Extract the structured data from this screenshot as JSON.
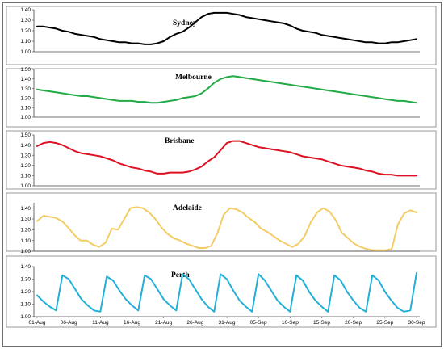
{
  "chart_data": [
    {
      "type": "line",
      "title": "Sydney",
      "ylim": [
        1.0,
        1.4
      ],
      "yticks": [
        "1.00",
        "1.10",
        "1.20",
        "1.30",
        "1.40"
      ],
      "color": "#000000",
      "series": [
        {
          "values": [
            1.24,
            1.24,
            1.23,
            1.22,
            1.2,
            1.19,
            1.17,
            1.16,
            1.15,
            1.14,
            1.12,
            1.11,
            1.1,
            1.09,
            1.09,
            1.08,
            1.08,
            1.07,
            1.07,
            1.08,
            1.1,
            1.14,
            1.17,
            1.19,
            1.23,
            1.28,
            1.33,
            1.36,
            1.37,
            1.37,
            1.37,
            1.36,
            1.35,
            1.33,
            1.32,
            1.31,
            1.3,
            1.29,
            1.28,
            1.27,
            1.25,
            1.22,
            1.2,
            1.19,
            1.18,
            1.16,
            1.15,
            1.14,
            1.13,
            1.12,
            1.11,
            1.1,
            1.09,
            1.09,
            1.08,
            1.08,
            1.09,
            1.09,
            1.1,
            1.11,
            1.12
          ]
        }
      ]
    },
    {
      "type": "line",
      "title": "Melbourne",
      "ylim": [
        1.0,
        1.5
      ],
      "yticks": [
        "1.00",
        "1.10",
        "1.20",
        "1.30",
        "1.40",
        "1.50"
      ],
      "color": "#22aa44",
      "series": [
        {
          "values": [
            1.29,
            1.28,
            1.27,
            1.26,
            1.25,
            1.24,
            1.23,
            1.22,
            1.22,
            1.21,
            1.2,
            1.19,
            1.18,
            1.17,
            1.17,
            1.17,
            1.16,
            1.16,
            1.15,
            1.15,
            1.16,
            1.17,
            1.18,
            1.2,
            1.21,
            1.22,
            1.25,
            1.3,
            1.36,
            1.4,
            1.42,
            1.43,
            1.42,
            1.41,
            1.4,
            1.39,
            1.38,
            1.37,
            1.36,
            1.35,
            1.34,
            1.33,
            1.32,
            1.31,
            1.3,
            1.29,
            1.28,
            1.27,
            1.26,
            1.25,
            1.24,
            1.23,
            1.22,
            1.21,
            1.2,
            1.19,
            1.18,
            1.17,
            1.17,
            1.16,
            1.15
          ]
        }
      ]
    },
    {
      "type": "line",
      "title": "Brisbane",
      "ylim": [
        1.0,
        1.5
      ],
      "yticks": [
        "1.00",
        "1.10",
        "1.20",
        "1.30",
        "1.40",
        "1.50"
      ],
      "color": "#dd1122",
      "series": [
        {
          "values": [
            1.39,
            1.42,
            1.43,
            1.42,
            1.4,
            1.37,
            1.34,
            1.32,
            1.31,
            1.3,
            1.29,
            1.27,
            1.25,
            1.22,
            1.2,
            1.18,
            1.17,
            1.15,
            1.14,
            1.12,
            1.12,
            1.13,
            1.13,
            1.13,
            1.14,
            1.16,
            1.19,
            1.24,
            1.28,
            1.35,
            1.42,
            1.44,
            1.44,
            1.42,
            1.4,
            1.38,
            1.37,
            1.36,
            1.35,
            1.34,
            1.33,
            1.31,
            1.29,
            1.28,
            1.27,
            1.26,
            1.24,
            1.22,
            1.2,
            1.19,
            1.18,
            1.17,
            1.15,
            1.14,
            1.12,
            1.11,
            1.11,
            1.1,
            1.1,
            1.1,
            1.1
          ]
        }
      ]
    },
    {
      "type": "line",
      "title": "Adelaide",
      "ylim": [
        1.0,
        1.45
      ],
      "yticks": [
        "1.00",
        "1.10",
        "1.20",
        "1.30",
        "1.40"
      ],
      "color": "#f3cc66",
      "series": [
        {
          "values": [
            1.28,
            1.33,
            1.32,
            1.31,
            1.28,
            1.22,
            1.15,
            1.1,
            1.1,
            1.06,
            1.04,
            1.08,
            1.21,
            1.2,
            1.3,
            1.4,
            1.41,
            1.4,
            1.36,
            1.3,
            1.22,
            1.16,
            1.12,
            1.1,
            1.07,
            1.05,
            1.03,
            1.03,
            1.05,
            1.17,
            1.34,
            1.4,
            1.39,
            1.36,
            1.31,
            1.27,
            1.21,
            1.18,
            1.14,
            1.1,
            1.07,
            1.04,
            1.07,
            1.14,
            1.27,
            1.36,
            1.4,
            1.37,
            1.29,
            1.17,
            1.12,
            1.07,
            1.04,
            1.02,
            1.01,
            1.01,
            1.01,
            1.02,
            1.25,
            1.35,
            1.38,
            1.36
          ]
        }
      ]
    },
    {
      "type": "line",
      "title": "Perth",
      "ylim": [
        1.0,
        1.4
      ],
      "yticks": [
        "1.00",
        "1.10",
        "1.20",
        "1.30",
        "1.40"
      ],
      "color": "#22b0d8",
      "xtick_labels": [
        "01-Aug",
        "06-Aug",
        "11-Aug",
        "16-Aug",
        "21-Aug",
        "26-Aug",
        "31-Aug",
        "05-Sep",
        "10-Sep",
        "15-Sep",
        "20-Sep",
        "25-Sep",
        "30-Sep"
      ],
      "series": [
        {
          "values": [
            1.17,
            1.12,
            1.08,
            1.05,
            1.33,
            1.3,
            1.22,
            1.14,
            1.09,
            1.05,
            1.04,
            1.32,
            1.29,
            1.21,
            1.14,
            1.09,
            1.05,
            1.33,
            1.3,
            1.22,
            1.14,
            1.09,
            1.05,
            1.34,
            1.3,
            1.22,
            1.14,
            1.08,
            1.04,
            1.34,
            1.3,
            1.21,
            1.13,
            1.08,
            1.04,
            1.34,
            1.29,
            1.21,
            1.13,
            1.08,
            1.04,
            1.33,
            1.29,
            1.2,
            1.13,
            1.08,
            1.04,
            1.33,
            1.29,
            1.2,
            1.13,
            1.07,
            1.04,
            1.33,
            1.29,
            1.2,
            1.13,
            1.07,
            1.04,
            1.05,
            1.35
          ]
        }
      ]
    }
  ],
  "colors": {
    "frame": "#6f6f6f",
    "panel_border": "#9a9a9a",
    "axis": "#444444"
  }
}
